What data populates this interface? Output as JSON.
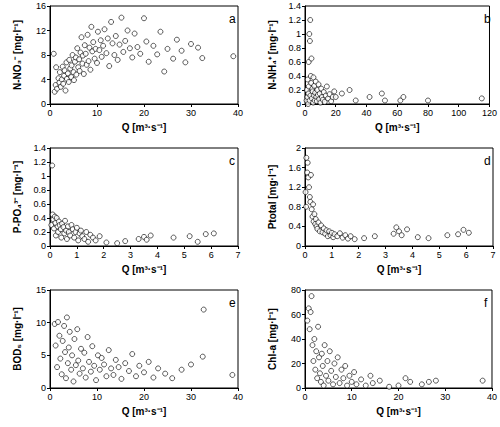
{
  "chart_data": [
    {
      "type": "scatter",
      "title": "a",
      "x_label": "Q [m³·s⁻¹]",
      "y_label": "N-NO₃⁻ [mg·l⁻¹]",
      "color": "#000000",
      "marker": "circle_open",
      "grid": false,
      "xlim": [
        0,
        40
      ],
      "xticks": [
        0,
        10,
        20,
        30,
        40
      ],
      "ylim": [
        0,
        16
      ],
      "yticks": [
        0,
        4,
        8,
        12,
        16
      ],
      "x": [
        0.8,
        1,
        1.2,
        1.3,
        1.5,
        1.8,
        2,
        2.1,
        2.3,
        2.5,
        2.7,
        2.8,
        3,
        3.1,
        3.3,
        3.5,
        3.6,
        3.8,
        4,
        4.1,
        4.3,
        4.5,
        4.6,
        4.8,
        5,
        5.1,
        5.3,
        5.5,
        5.6,
        5.8,
        6,
        6.2,
        6.3,
        6.5,
        6.7,
        6.9,
        7,
        7.2,
        7.4,
        7.6,
        7.8,
        8,
        8.2,
        8.4,
        8.6,
        8.8,
        9,
        9.2,
        9.5,
        9.7,
        10,
        10.2,
        10.5,
        10.8,
        11,
        11.3,
        11.6,
        12,
        12.3,
        12.6,
        13,
        13.3,
        13.7,
        14,
        14.4,
        14.8,
        15.2,
        15.6,
        16,
        16.5,
        17,
        17.5,
        18,
        18.6,
        19.2,
        20,
        20.5,
        21,
        22,
        22.8,
        23.5,
        24.3,
        25,
        26.2,
        27,
        28,
        28.8,
        30,
        31.5,
        32.4,
        39
      ],
      "values": [
        8.2,
        2.0,
        3.1,
        6.0,
        2.5,
        4.2,
        3.5,
        5.2,
        2.8,
        4.0,
        6.1,
        3.3,
        4.6,
        5.5,
        2.2,
        6.8,
        4.1,
        5.0,
        3.6,
        7.2,
        5.8,
        4.4,
        6.3,
        8.0,
        5.2,
        3.9,
        6.9,
        7.6,
        4.8,
        9.1,
        6.0,
        7.3,
        5.4,
        8.4,
        10.9,
        6.6,
        7.9,
        4.9,
        9.6,
        8.2,
        6.4,
        11.3,
        7.0,
        9.2,
        5.6,
        12.6,
        8.6,
        10.1,
        7.4,
        9.0,
        6.7,
        11.8,
        8.8,
        10.4,
        7.7,
        9.5,
        12.2,
        8.3,
        10.7,
        6.2,
        13.4,
        9.9,
        8.0,
        11.1,
        7.2,
        9.7,
        14.1,
        8.5,
        10.3,
        12.0,
        9.1,
        7.6,
        11.5,
        9.3,
        8.2,
        14.0,
        10.2,
        6.9,
        9.5,
        8.1,
        11.8,
        5.3,
        9.0,
        7.4,
        10.5,
        8.7,
        6.8,
        9.8,
        9.2,
        7.5,
        7.8
      ]
    },
    {
      "type": "scatter",
      "title": "b",
      "x_label": "Q [m³·s⁻¹]",
      "y_label": "N-NH₄⁺ [mg·l⁻¹]",
      "color": "#000000",
      "marker": "circle_open",
      "grid": false,
      "xlim": [
        0,
        120
      ],
      "xticks": [
        0,
        20,
        40,
        60,
        80,
        100,
        120
      ],
      "ylim": [
        0,
        1.4
      ],
      "yticks": [
        0,
        0.2,
        0.4,
        0.6,
        0.8,
        1,
        1.2,
        1.4
      ],
      "x": [
        1,
        1.2,
        1.5,
        1.8,
        2,
        2.2,
        2.4,
        2.5,
        2.8,
        3,
        3.2,
        3.4,
        3.5,
        3.8,
        4,
        4.2,
        4.5,
        4.8,
        5,
        5.3,
        5.5,
        5.8,
        6,
        6.3,
        6.6,
        7,
        7.3,
        7.7,
        8,
        8.4,
        8.8,
        9.2,
        9.6,
        10,
        10.5,
        11,
        11.6,
        12.2,
        12.8,
        13.5,
        14.2,
        15,
        16,
        17,
        18,
        19,
        20,
        24,
        29,
        33,
        42,
        50,
        52,
        62,
        64,
        80,
        115
      ],
      "values": [
        0.05,
        0.2,
        0.1,
        0.35,
        0.0,
        0.15,
        0.6,
        0.25,
        1.0,
        0.05,
        0.9,
        1.2,
        0.12,
        0.4,
        0.3,
        0.65,
        0.08,
        0.22,
        0.18,
        0.02,
        0.38,
        0.12,
        0.26,
        0.05,
        0.16,
        0.32,
        0.1,
        0.04,
        0.2,
        0.13,
        0.28,
        0.07,
        0.15,
        0.02,
        0.22,
        0.1,
        0.06,
        0.17,
        0.03,
        0.12,
        0.25,
        0.08,
        0.14,
        0.04,
        0.1,
        0.18,
        0.1,
        0.15,
        0.2,
        0.05,
        0.1,
        0.15,
        0.05,
        0.05,
        0.1,
        0.05,
        0.08
      ]
    },
    {
      "type": "scatter",
      "title": "c",
      "x_label": "Q [m³·s⁻¹]",
      "y_label": "P-PO₄³⁻ [mg·l⁻¹]",
      "color": "#000000",
      "marker": "circle_open",
      "grid": false,
      "xlim": [
        0,
        7
      ],
      "xticks": [
        0,
        1,
        2,
        3,
        4,
        5,
        6,
        7
      ],
      "ylim": [
        0,
        1.4
      ],
      "yticks": [
        0,
        0.2,
        0.4,
        0.6,
        0.8,
        1,
        1.2,
        1.4
      ],
      "x": [
        0.05,
        0.08,
        0.1,
        0.12,
        0.15,
        0.18,
        0.2,
        0.22,
        0.25,
        0.28,
        0.3,
        0.33,
        0.36,
        0.4,
        0.42,
        0.45,
        0.5,
        0.53,
        0.56,
        0.6,
        0.63,
        0.67,
        0.7,
        0.75,
        0.8,
        0.85,
        0.9,
        0.95,
        1,
        1.05,
        1.1,
        1.15,
        1.2,
        1.28,
        1.35,
        1.42,
        1.5,
        1.6,
        1.7,
        1.85,
        2.1,
        2.5,
        2.8,
        3.3,
        3.5,
        3.6,
        3.75,
        4.6,
        5.2,
        5.5,
        5.8,
        6.1
      ],
      "values": [
        0.3,
        1.15,
        0.45,
        0.38,
        0.25,
        0.42,
        0.33,
        0.15,
        0.4,
        0.28,
        0.2,
        0.35,
        0.3,
        0.24,
        0.12,
        0.32,
        0.27,
        0.18,
        0.36,
        0.22,
        0.1,
        0.28,
        0.2,
        0.15,
        0.3,
        0.24,
        0.12,
        0.2,
        0.26,
        0.08,
        0.18,
        0.22,
        0.14,
        0.1,
        0.2,
        0.06,
        0.16,
        0.12,
        0.08,
        0.14,
        0.05,
        0.04,
        0.07,
        0.1,
        0.13,
        0.09,
        0.15,
        0.12,
        0.14,
        0.06,
        0.17,
        0.18
      ]
    },
    {
      "type": "scatter",
      "title": "d",
      "x_label": "Q [m³·s⁻¹]",
      "y_label": "Ptotal [mg·l⁻¹]",
      "color": "#000000",
      "marker": "circle_open",
      "grid": false,
      "xlim": [
        0,
        7
      ],
      "xticks": [
        0,
        1,
        2,
        3,
        4,
        5,
        6,
        7
      ],
      "ylim": [
        0,
        2
      ],
      "yticks": [
        0,
        0.4,
        0.8,
        1.2,
        1.6,
        2
      ],
      "x": [
        0.02,
        0.04,
        0.05,
        0.08,
        0.1,
        0.12,
        0.15,
        0.18,
        0.2,
        0.22,
        0.25,
        0.28,
        0.3,
        0.32,
        0.35,
        0.38,
        0.4,
        0.43,
        0.46,
        0.5,
        0.55,
        0.6,
        0.65,
        0.7,
        0.75,
        0.8,
        0.85,
        0.9,
        0.95,
        1,
        1.05,
        1.1,
        1.2,
        1.3,
        1.4,
        1.5,
        1.6,
        1.7,
        1.85,
        2.2,
        2.6,
        3.3,
        3.4,
        3.5,
        3.6,
        3.8,
        4.2,
        4.6,
        5.3,
        5.7,
        5.9,
        6.1
      ],
      "values": [
        1.1,
        0.8,
        1.8,
        1.5,
        1.7,
        1.4,
        1.2,
        1.0,
        0.9,
        1.45,
        0.75,
        0.6,
        0.85,
        0.5,
        0.65,
        0.45,
        0.55,
        0.4,
        0.35,
        0.48,
        0.3,
        0.42,
        0.28,
        0.36,
        0.25,
        0.32,
        0.2,
        0.3,
        0.22,
        0.27,
        0.18,
        0.24,
        0.2,
        0.26,
        0.17,
        0.22,
        0.15,
        0.2,
        0.14,
        0.16,
        0.2,
        0.25,
        0.38,
        0.3,
        0.22,
        0.34,
        0.18,
        0.16,
        0.22,
        0.24,
        0.33,
        0.27
      ]
    },
    {
      "type": "scatter",
      "title": "e",
      "x_label": "Q [m³·s⁻¹]",
      "y_label": "BOD₅ [mg·l⁻¹]",
      "color": "#000000",
      "marker": "circle_open",
      "grid": false,
      "xlim": [
        0,
        40
      ],
      "xticks": [
        0,
        10,
        20,
        30,
        40
      ],
      "ylim": [
        0,
        15
      ],
      "yticks": [
        0,
        5,
        10,
        15
      ],
      "x": [
        1,
        1.2,
        1.5,
        1.7,
        2,
        2.2,
        2.5,
        2.7,
        3,
        3.2,
        3.4,
        3.6,
        3.8,
        4,
        4.2,
        4.5,
        4.7,
        5,
        5.2,
        5.5,
        5.8,
        6,
        6.3,
        6.6,
        7,
        7.3,
        7.6,
        8,
        8.3,
        8.7,
        9,
        9.4,
        9.8,
        10.2,
        10.6,
        11,
        11.5,
        12,
        12.5,
        13,
        13.5,
        14,
        14.6,
        15.2,
        16,
        16.8,
        17.5,
        18.3,
        19,
        20,
        21,
        22,
        23,
        24.5,
        26,
        28,
        30,
        32.5,
        32.7,
        38.8
      ],
      "values": [
        9.8,
        6.5,
        3.2,
        10.1,
        8.0,
        4.5,
        2.1,
        7.2,
        9.5,
        5.5,
        1.5,
        10.8,
        3.8,
        6.2,
        8.6,
        2.8,
        5.0,
        1.0,
        7.5,
        3.5,
        9.0,
        4.2,
        2.2,
        6.0,
        3.0,
        5.4,
        1.6,
        7.8,
        4.0,
        2.5,
        6.4,
        3.4,
        1.2,
        5.0,
        2.8,
        4.6,
        3.6,
        1.8,
        5.8,
        3.0,
        2.0,
        4.3,
        3.2,
        1.4,
        3.8,
        2.6,
        5.2,
        1.8,
        3.4,
        2.4,
        4.0,
        1.6,
        3.0,
        2.2,
        1.5,
        2.8,
        3.6,
        4.8,
        12.0,
        2.0
      ]
    },
    {
      "type": "scatter",
      "title": "f",
      "x_label": "Q [m³·s⁻¹]",
      "y_label": "Chl-a [mg·l⁻¹]",
      "color": "#000000",
      "marker": "circle_open",
      "grid": false,
      "xlim": [
        0,
        40
      ],
      "xticks": [
        0,
        10,
        20,
        30,
        40
      ],
      "ylim": [
        0,
        80
      ],
      "yticks": [
        0,
        20,
        40,
        60,
        80
      ],
      "x": [
        0.5,
        0.8,
        1,
        1.2,
        1.4,
        1.6,
        1.8,
        2,
        2.2,
        2.4,
        2.6,
        2.8,
        3,
        3.2,
        3.4,
        3.6,
        3.8,
        4,
        4.2,
        4.5,
        4.8,
        5,
        5.3,
        5.6,
        6,
        6.3,
        6.6,
        7,
        7.4,
        7.8,
        8.2,
        8.6,
        9,
        9.5,
        10,
        10.5,
        11,
        12,
        13,
        14,
        14.5,
        16,
        18,
        20,
        21.5,
        22.5,
        25,
        26.5,
        28,
        38
      ],
      "values": [
        55,
        65,
        48,
        62,
        75,
        35,
        22,
        40,
        15,
        30,
        8,
        50,
        25,
        12,
        5,
        28,
        18,
        2,
        35,
        10,
        22,
        6,
        30,
        14,
        3,
        20,
        9,
        25,
        4,
        15,
        8,
        18,
        2,
        10,
        5,
        13,
        3,
        7,
        2,
        10,
        4,
        6,
        1,
        2,
        8,
        5,
        3,
        5,
        6,
        6
      ]
    }
  ]
}
